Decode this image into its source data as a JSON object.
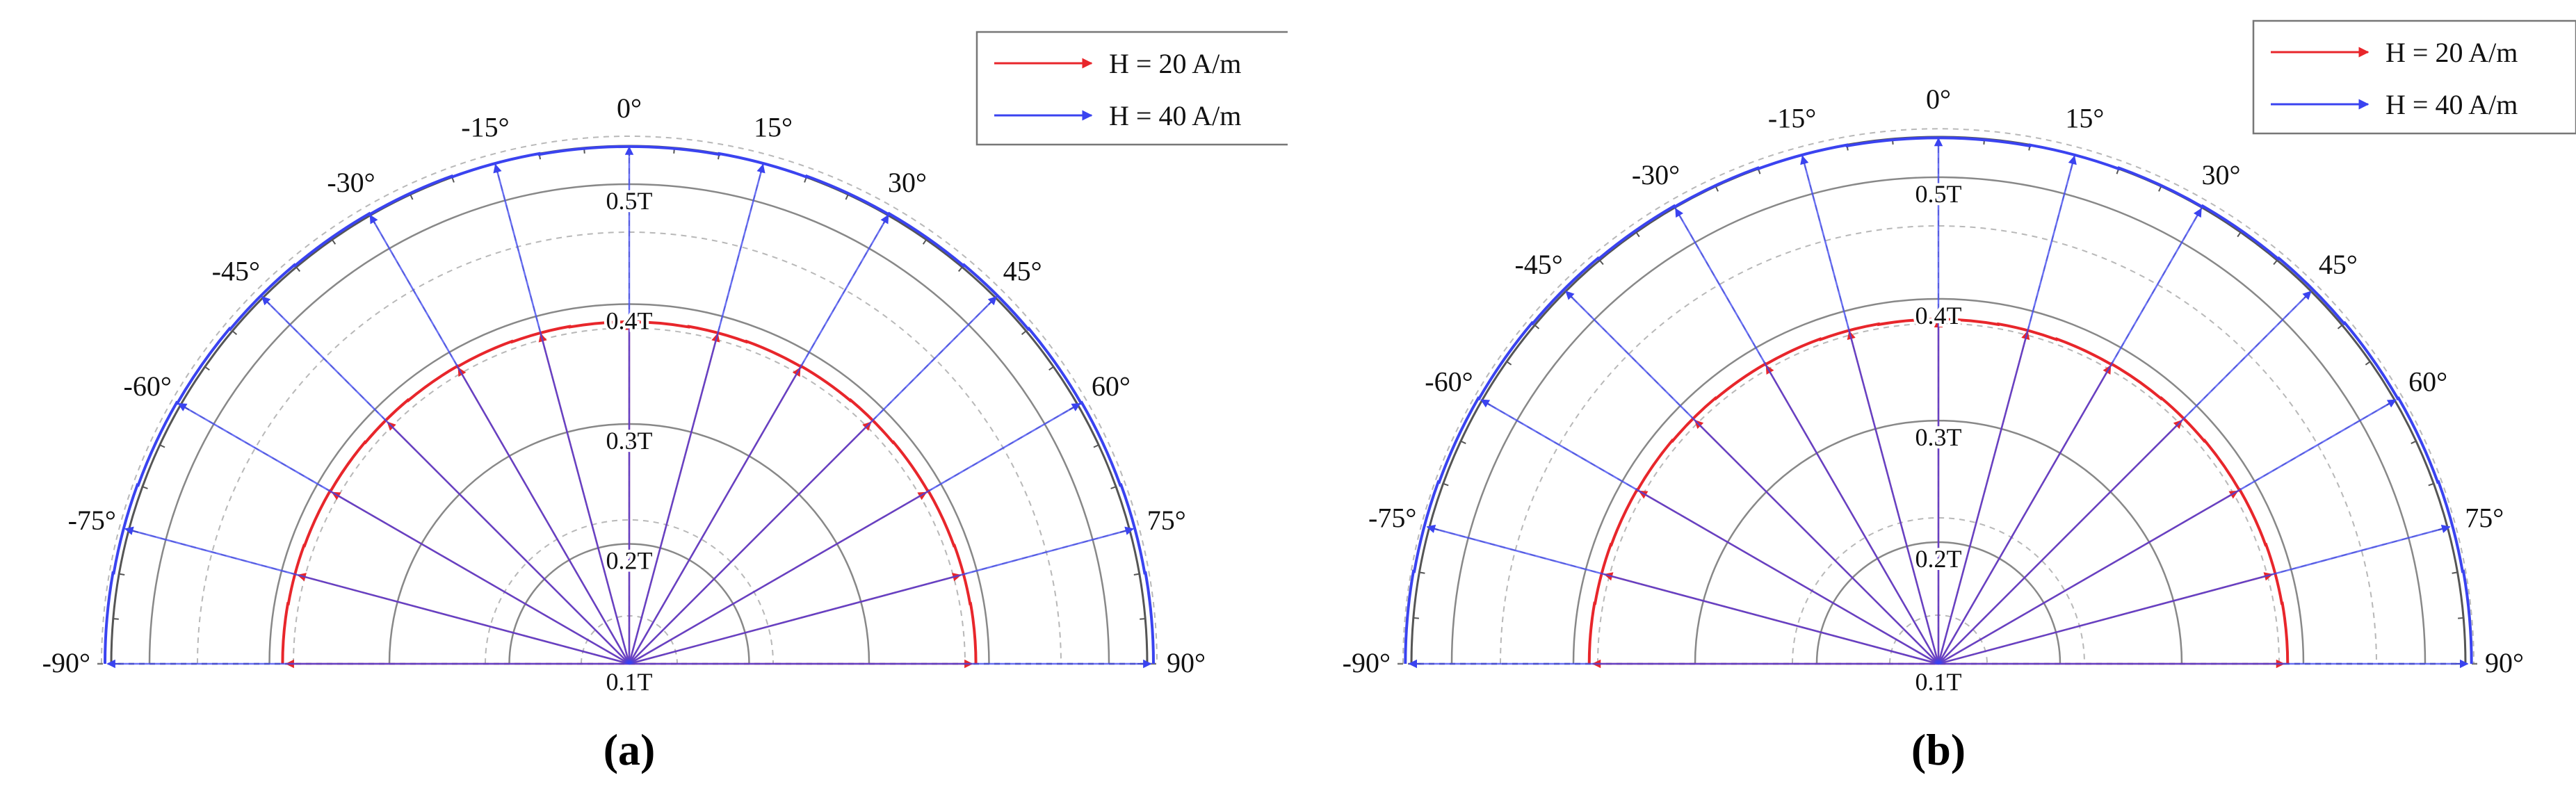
{
  "chart_data": [
    {
      "type": "polar-vector",
      "panel_label": "(a)",
      "angle_unit": "deg",
      "angular_range": [
        -90,
        90
      ],
      "angle_ticks": [
        "-90°",
        "-75°",
        "-60°",
        "-45°",
        "-30°",
        "-15°",
        "0°",
        "15°",
        "30°",
        "45°",
        "60°",
        "75°",
        "90°"
      ],
      "radial_range_T": [
        0.1,
        0.56
      ],
      "radial_ticks": [
        0.1,
        0.2,
        0.3,
        0.4,
        0.5
      ],
      "radial_tick_labels": [
        "0.1T",
        "0.2T",
        "0.3T",
        "0.4T",
        "0.5T"
      ],
      "legend_position": "top-right",
      "series": [
        {
          "name": "H = 20 A/m",
          "color": "#e8262b",
          "arrow_angles": [
            -90,
            -75,
            -60,
            -45,
            -30,
            -15,
            0,
            15,
            30,
            45,
            60,
            75,
            90
          ],
          "values": [
            0.386,
            0.386,
            0.386,
            0.385,
            0.385,
            0.385,
            0.385,
            0.385,
            0.385,
            0.385,
            0.386,
            0.386,
            0.386
          ],
          "stairs": [
            -90,
            -80,
            -70,
            -60,
            -50,
            -40,
            -30,
            -20,
            -10,
            0,
            10,
            20,
            30,
            40,
            50,
            60,
            70,
            80,
            90
          ]
        },
        {
          "name": "H = 40 A/m",
          "color": "#3a43f0",
          "arrow_angles": [
            -90,
            -75,
            -60,
            -45,
            -30,
            -15,
            0,
            15,
            30,
            45,
            60,
            75,
            90
          ],
          "values": [
            0.535,
            0.535,
            0.534,
            0.533,
            0.532,
            0.531,
            0.531,
            0.531,
            0.532,
            0.533,
            0.534,
            0.535,
            0.535
          ],
          "stairs": [
            -90,
            -80,
            -70,
            -60,
            -50,
            -40,
            -30,
            -20,
            -10,
            0,
            10,
            20,
            30,
            40,
            50,
            60,
            70,
            80,
            90
          ]
        }
      ]
    },
    {
      "type": "polar-vector",
      "panel_label": "(b)",
      "angle_unit": "deg",
      "angular_range": [
        -90,
        90
      ],
      "angle_ticks": [
        "-90°",
        "-75°",
        "-60°",
        "-45°",
        "-30°",
        "-15°",
        "0°",
        "15°",
        "30°",
        "45°",
        "60°",
        "75°",
        "90°"
      ],
      "radial_range_T": [
        0.1,
        0.56
      ],
      "radial_ticks": [
        0.1,
        0.2,
        0.3,
        0.4,
        0.5
      ],
      "radial_tick_labels": [
        "0.1T",
        "0.2T",
        "0.3T",
        "0.4T",
        "0.5T"
      ],
      "legend_position": "top-right",
      "series": [
        {
          "name": "H = 20 A/m",
          "color": "#e8262b",
          "arrow_angles": [
            -90,
            -75,
            -60,
            -45,
            -30,
            -15,
            0,
            15,
            30,
            45,
            60,
            75,
            90
          ],
          "values": [
            0.384,
            0.384,
            0.384,
            0.383,
            0.383,
            0.383,
            0.383,
            0.383,
            0.383,
            0.383,
            0.384,
            0.384,
            0.384
          ],
          "stairs": [
            -90,
            -80,
            -70,
            -60,
            -50,
            -40,
            -30,
            -20,
            -10,
            0,
            10,
            20,
            30,
            40,
            50,
            60,
            70,
            80,
            90
          ]
        },
        {
          "name": "H = 40 A/m",
          "color": "#3a43f0",
          "arrow_angles": [
            -90,
            -75,
            -60,
            -45,
            -30,
            -15,
            0,
            15,
            30,
            45,
            60,
            75,
            90
          ],
          "values": [
            0.535,
            0.535,
            0.534,
            0.533,
            0.532,
            0.532,
            0.532,
            0.532,
            0.532,
            0.533,
            0.534,
            0.535,
            0.535
          ],
          "stairs": [
            -90,
            -80,
            -70,
            -60,
            -50,
            -40,
            -30,
            -20,
            -10,
            0,
            10,
            20,
            30,
            40,
            50,
            60,
            70,
            80,
            90
          ]
        }
      ]
    }
  ]
}
